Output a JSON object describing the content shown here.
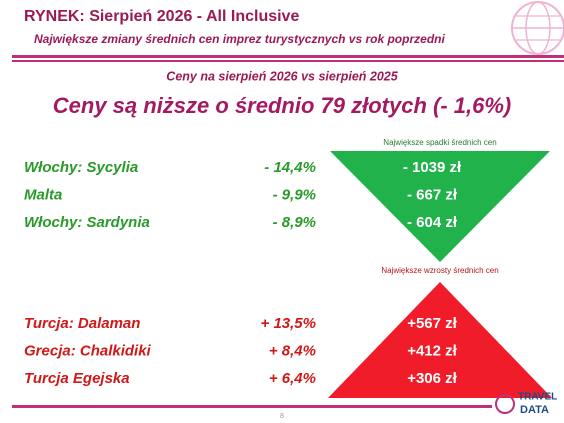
{
  "header": {
    "title": "RYNEK: Sierpień 2026 - All Inclusive",
    "subtitle": "Największe zmiany średnich cen imprez turystycznych vs rok poprzedni"
  },
  "comparison": "Ceny na sierpień 2026 vs sierpień 2025",
  "headline": "Ceny są niższe o średnio 79 złotych (- 1,6%)",
  "decreases": {
    "label": "Największe spadki średnich cen",
    "rows": [
      [
        "Włochy: Sycylia",
        "- 14,4%",
        "- 1039 zł"
      ],
      [
        "Malta",
        "- 9,9%",
        "- 667 zł"
      ],
      [
        "Włochy: Sardynia",
        "- 8,9%",
        "- 604 zł"
      ]
    ]
  },
  "increases": {
    "label": "Największe wzrosty średnich cen",
    "rows": [
      [
        "Turcja: Dalaman",
        "+ 13,5%",
        "+567 zł"
      ],
      [
        "Grecja: Chalkidiki",
        "+ 8,4%",
        "+412 zł"
      ],
      [
        "Turcja Egejska",
        "+ 6,4%",
        "+306 zł"
      ]
    ]
  },
  "page_number": "8",
  "logo": {
    "line1": "TRAVEL",
    "line2": "DATA"
  }
}
